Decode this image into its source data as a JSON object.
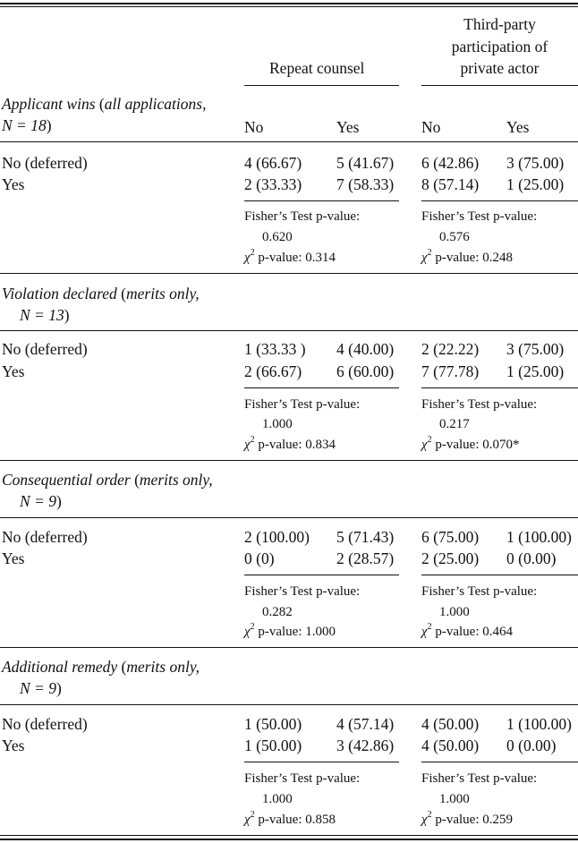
{
  "header": {
    "repeat_counsel": "Repeat counsel",
    "third_party_line1": "Third-party",
    "third_party_line2": "participation of",
    "third_party_line3": "private actor",
    "col_no": "No",
    "col_yes": "Yes",
    "col_no2": "No",
    "col_yes2": "Yes"
  },
  "sections": [
    {
      "title_italic_a": "Applicant wins",
      "title_paren_open": " (",
      "title_italic_b": "all applications,",
      "title_line2_italic": "N = 18",
      "title_line2_close": ")",
      "row_no_label": "No (deferred)",
      "row_yes_label": "Yes",
      "no_vals": [
        "4 (66.67)",
        "5 (41.67)",
        "6 (42.86)",
        "3 (75.00)"
      ],
      "yes_vals": [
        "2 (33.33)",
        "7 (58.33)",
        "8 (57.14)",
        "1 (25.00)"
      ],
      "fisher_label": "Fisher’s Test p-value:",
      "fisher_rc": "0.620",
      "fisher_tp": "0.576",
      "chi_label": " p-value: ",
      "chi_rc": "0.314",
      "chi_tp": "0.248"
    },
    {
      "title_italic_a": "Violation declared",
      "title_paren_open": " (",
      "title_italic_b": "merits only,",
      "title_line2_italic": "N = 13",
      "title_line2_close": ")",
      "row_no_label": "No (deferred)",
      "row_yes_label": "Yes",
      "no_vals": [
        "1 (33.33 )",
        "4 (40.00)",
        "2 (22.22)",
        "3 (75.00)"
      ],
      "yes_vals": [
        "2 (66.67)",
        "6 (60.00)",
        "7 (77.78)",
        "1 (25.00)"
      ],
      "fisher_label": "Fisher’s Test p-value:",
      "fisher_rc": "1.000",
      "fisher_tp": "0.217",
      "chi_label": " p-value: ",
      "chi_rc": "0.834",
      "chi_tp": "0.070*"
    },
    {
      "title_italic_a": "Consequential order",
      "title_paren_open": " (",
      "title_italic_b": "merits only,",
      "title_line2_italic": "N = 9",
      "title_line2_close": ")",
      "row_no_label": "No (deferred)",
      "row_yes_label": "Yes",
      "no_vals": [
        "2 (100.00)",
        "5 (71.43)",
        "6 (75.00)",
        "1 (100.00)"
      ],
      "yes_vals": [
        "0 (0)",
        "2 (28.57)",
        "2 (25.00)",
        "0 (0.00)"
      ],
      "fisher_label": "Fisher’s Test p-value:",
      "fisher_rc": "0.282",
      "fisher_tp": "1.000",
      "chi_label": " p-value: ",
      "chi_rc": "1.000",
      "chi_tp": "0.464"
    },
    {
      "title_italic_a": "Additional remedy",
      "title_paren_open": " (",
      "title_italic_b": "merits only,",
      "title_line2_italic": "N = 9",
      "title_line2_close": ")",
      "row_no_label": "No (deferred)",
      "row_yes_label": "Yes",
      "no_vals": [
        "1 (50.00)",
        "4 (57.14)",
        "4 (50.00)",
        "1 (100.00)"
      ],
      "yes_vals": [
        "1 (50.00)",
        "3 (42.86)",
        "4 (50.00)",
        "0 (0.00)"
      ],
      "fisher_label": "Fisher’s Test p-value:",
      "fisher_rc": "1.000",
      "fisher_tp": "1.000",
      "chi_label": " p-value: ",
      "chi_rc": "0.858",
      "chi_tp": "0.259"
    }
  ]
}
